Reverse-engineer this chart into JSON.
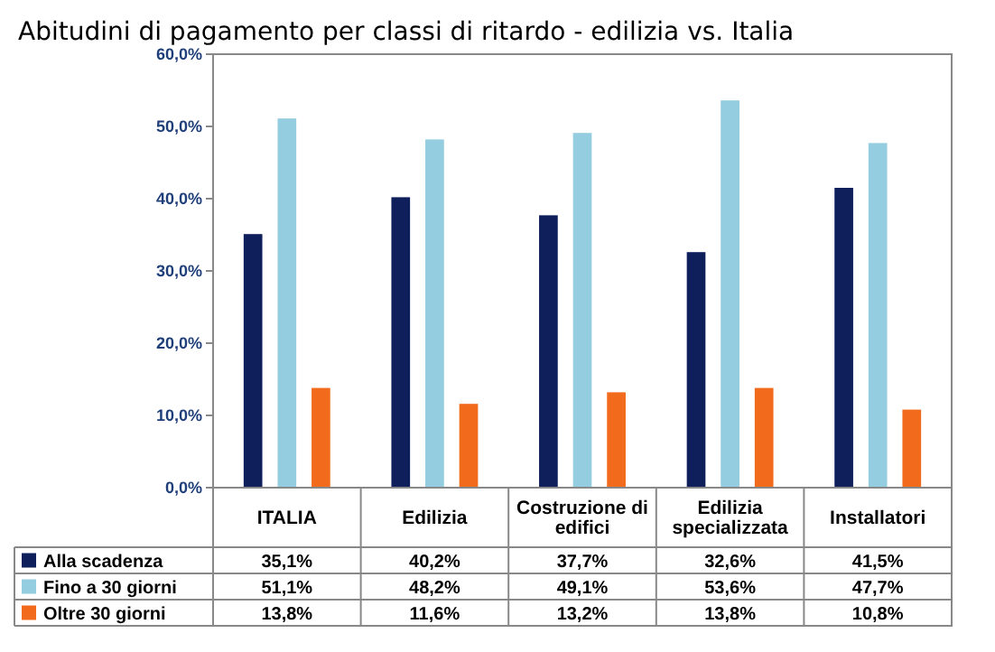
{
  "chart_data": {
    "type": "bar",
    "title": "Abitudini  di pagamento per classi di ritardo - edilizia  vs. Italia",
    "categories": [
      "ITALIA",
      "Edilizia",
      "Costruzione di edifici",
      "Edilizia specializzata",
      "Installatori"
    ],
    "series": [
      {
        "name": "Alla scadenza",
        "color": "#0e1f5b",
        "values": [
          35.1,
          40.2,
          37.7,
          32.6,
          41.5
        ],
        "value_labels": [
          "35,1%",
          "40,2%",
          "37,7%",
          "32,6%",
          "41,5%"
        ]
      },
      {
        "name": "Fino a 30 giorni",
        "color": "#95cde0",
        "values": [
          51.1,
          48.2,
          49.1,
          53.6,
          47.7
        ],
        "value_labels": [
          "51,1%",
          "48,2%",
          "49,1%",
          "53,6%",
          "47,7%"
        ]
      },
      {
        "name": "Oltre 30 giorni",
        "color": "#f26a1b",
        "values": [
          13.8,
          11.6,
          13.2,
          13.8,
          10.8
        ],
        "value_labels": [
          "13,8%",
          "11,6%",
          "13,2%",
          "13,8%",
          "10,8%"
        ]
      }
    ],
    "ylim": [
      0,
      60
    ],
    "yticks": [
      {
        "value": 0,
        "label": "0,0%"
      },
      {
        "value": 10,
        "label": "10,0%"
      },
      {
        "value": 20,
        "label": "20,0%"
      },
      {
        "value": 30,
        "label": "30,0%"
      },
      {
        "value": 40,
        "label": "40,0%"
      },
      {
        "value": 50,
        "label": "50,0%"
      },
      {
        "value": 60,
        "label": "60,0%"
      }
    ],
    "grid": false,
    "legend": "bottom"
  }
}
